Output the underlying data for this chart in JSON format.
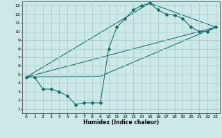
{
  "title": "",
  "xlabel": "Humidex (Indice chaleur)",
  "xlim": [
    -0.5,
    23.5
  ],
  "ylim": [
    0.5,
    13.5
  ],
  "xticks": [
    0,
    1,
    2,
    3,
    4,
    5,
    6,
    7,
    8,
    9,
    10,
    11,
    12,
    13,
    14,
    15,
    16,
    17,
    18,
    19,
    20,
    21,
    22,
    23
  ],
  "yticks": [
    1,
    2,
    3,
    4,
    5,
    6,
    7,
    8,
    9,
    10,
    11,
    12,
    13
  ],
  "background_color": "#cce8e8",
  "grid_color": "#aacccc",
  "line_color": "#1a6b6b",
  "series_main": {
    "x": [
      0,
      1,
      2,
      3,
      4,
      5,
      6,
      7,
      8,
      9,
      10,
      11,
      12,
      13,
      14,
      15,
      16,
      17,
      18,
      19,
      20,
      21,
      22,
      23
    ],
    "y": [
      4.7,
      4.7,
      3.3,
      3.3,
      3.0,
      2.5,
      1.5,
      1.7,
      1.7,
      1.7,
      8.0,
      10.5,
      11.5,
      12.5,
      13.0,
      13.3,
      12.5,
      12.0,
      11.9,
      11.5,
      10.5,
      10.0,
      10.0,
      10.5
    ]
  },
  "lines": [
    {
      "x": [
        0,
        9,
        23
      ],
      "y": [
        4.7,
        4.8,
        10.5
      ]
    },
    {
      "x": [
        0,
        15,
        23
      ],
      "y": [
        4.7,
        13.3,
        10.5
      ]
    },
    {
      "x": [
        0,
        23
      ],
      "y": [
        4.7,
        10.5
      ]
    }
  ]
}
